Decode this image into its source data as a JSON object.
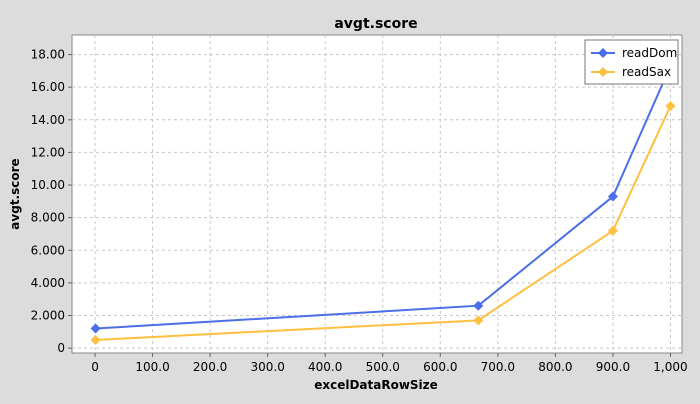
{
  "chart_data": {
    "type": "line",
    "title": "avgt.score",
    "xlabel": "excelDataRowSize",
    "ylabel": "avgt.score",
    "xlim": [
      -40,
      1020
    ],
    "ylim": [
      -0.3,
      19.2
    ],
    "x_ticks": [
      0,
      100,
      200,
      300,
      400,
      500,
      600,
      700,
      800,
      900,
      1000
    ],
    "x_tick_labels": [
      "0",
      "100.0",
      "200.0",
      "300.0",
      "400.0",
      "500.0",
      "600.0",
      "700.0",
      "800.0",
      "900.0",
      "1,000"
    ],
    "y_ticks": [
      0,
      2,
      4,
      6,
      8,
      10,
      12,
      14,
      16,
      18
    ],
    "y_tick_labels": [
      "0",
      "2.000",
      "4.000",
      "6.000",
      "8.000",
      "10.00",
      "12.00",
      "14.00",
      "16.00",
      "18.00"
    ],
    "grid": true,
    "legend_position": "top-right",
    "series": [
      {
        "name": "readDom",
        "color": "#4a6fe8",
        "x": [
          1,
          666,
          900,
          1000
        ],
        "y": [
          1.2,
          2.6,
          9.3,
          17.3
        ]
      },
      {
        "name": "readSax",
        "color": "#ffc040",
        "x": [
          1,
          666,
          900,
          1000
        ],
        "y": [
          0.5,
          1.7,
          7.2,
          14.85
        ]
      }
    ]
  }
}
